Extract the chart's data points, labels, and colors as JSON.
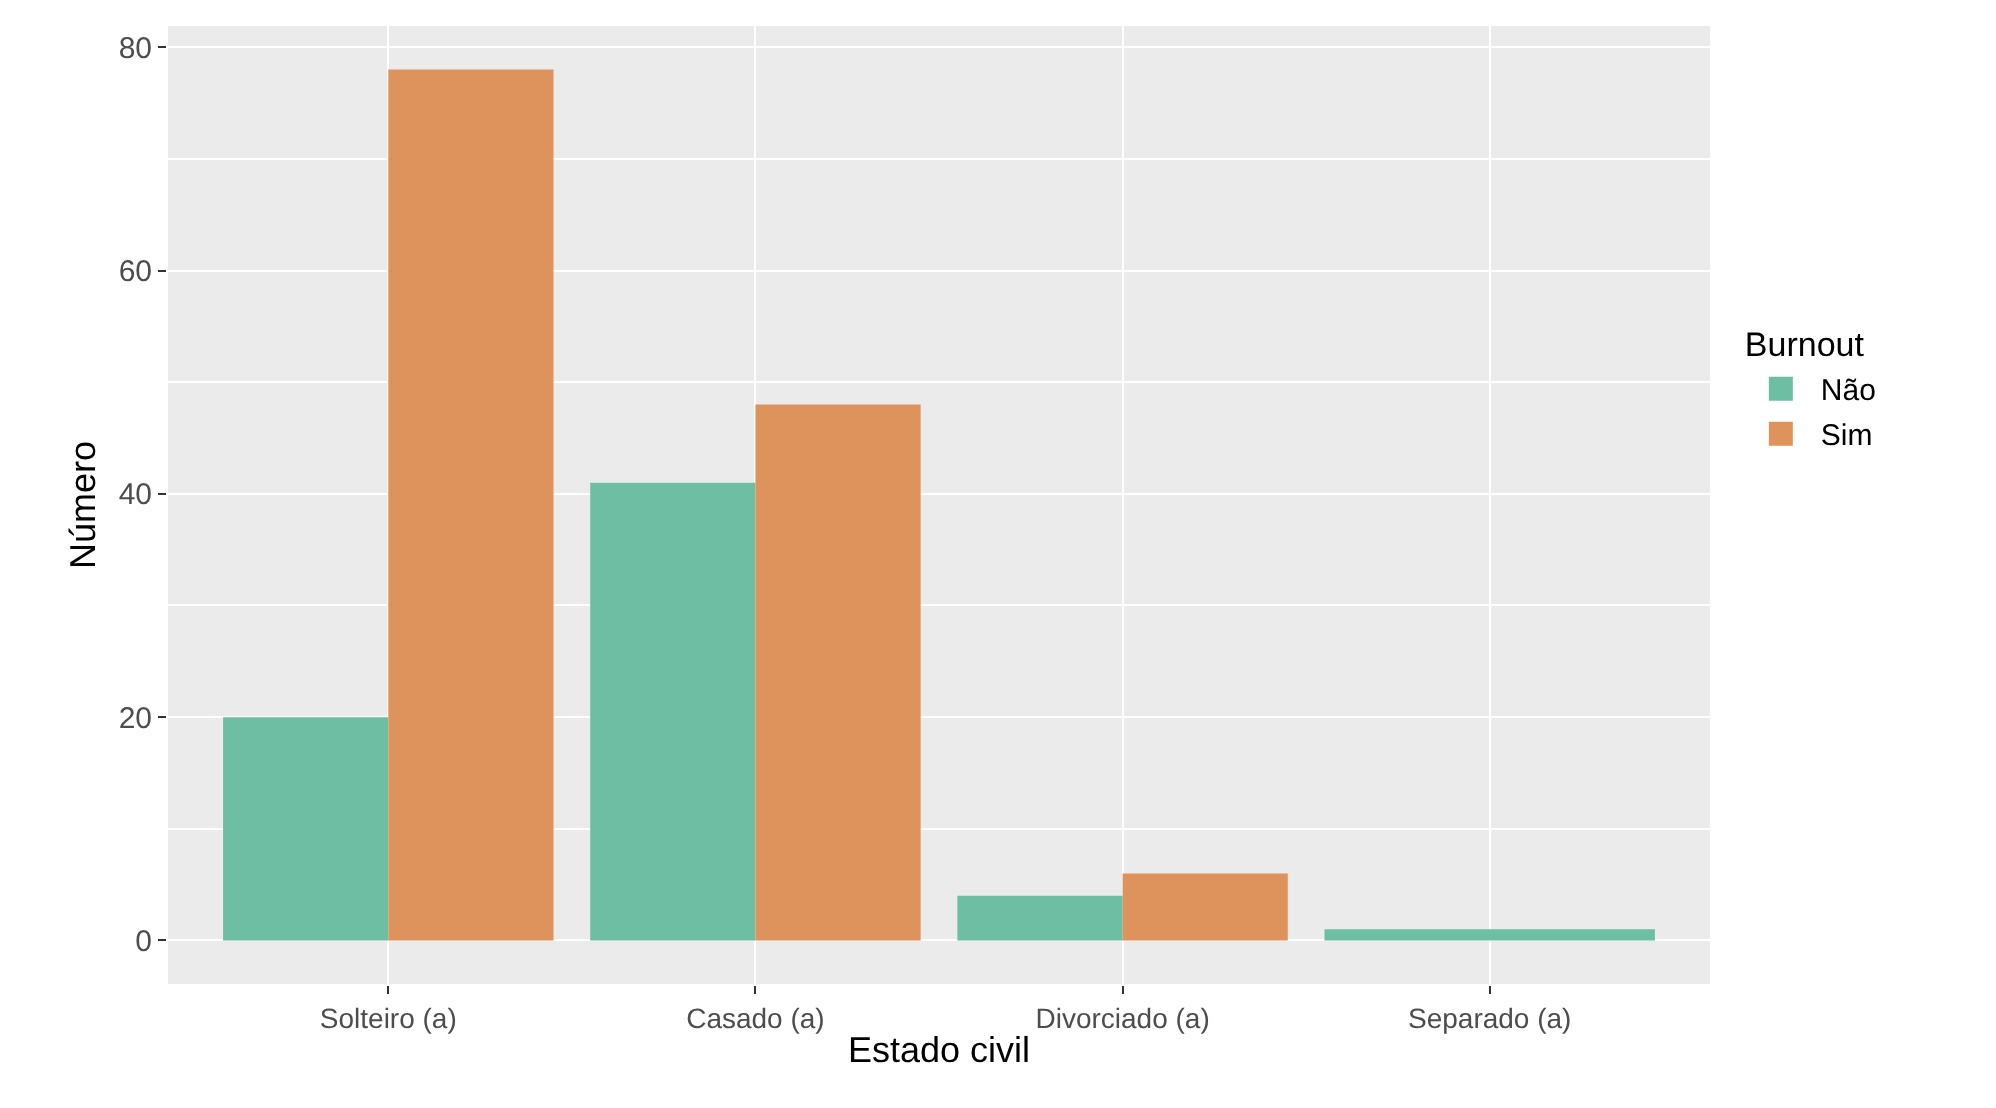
{
  "chart_data": {
    "type": "bar",
    "xlabel": "Estado civil",
    "ylabel": "Número",
    "legend_title": "Burnout",
    "categories": [
      "Solteiro (a)",
      "Casado (a)",
      "Divorciado (a)",
      "Separado (a)"
    ],
    "series": [
      {
        "name": "Não",
        "color": "#6dbea3",
        "values": [
          20,
          41,
          4,
          1
        ]
      },
      {
        "name": "Sim",
        "color": "#de935c",
        "values": [
          78,
          48,
          6,
          null
        ]
      }
    ],
    "ylim": [
      -3.9,
      81.9
    ],
    "yticks": [
      0,
      20,
      40,
      60,
      80
    ],
    "grid": true,
    "legend": "right"
  }
}
